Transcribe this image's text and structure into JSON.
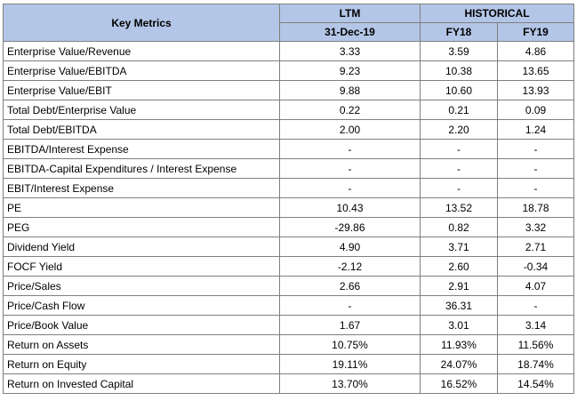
{
  "header": {
    "title": "Key Metrics",
    "ltm": "LTM",
    "historical": "HISTORICAL",
    "ltm_date": "31-Dec-19",
    "fy18": "FY18",
    "fy19": "FY19"
  },
  "rows": [
    {
      "label": "Enterprise Value/Revenue",
      "ltm": "3.33",
      "fy18": "3.59",
      "fy19": "4.86"
    },
    {
      "label": "Enterprise Value/EBITDA",
      "ltm": "9.23",
      "fy18": "10.38",
      "fy19": "13.65"
    },
    {
      "label": "Enterprise Value/EBIT",
      "ltm": "9.88",
      "fy18": "10.60",
      "fy19": "13.93"
    },
    {
      "label": "Total Debt/Enterprise Value",
      "ltm": "0.22",
      "fy18": "0.21",
      "fy19": "0.09"
    },
    {
      "label": "Total Debt/EBITDA",
      "ltm": "2.00",
      "fy18": "2.20",
      "fy19": "1.24"
    },
    {
      "label": "EBITDA/Interest Expense",
      "ltm": "-",
      "fy18": "-",
      "fy19": "-"
    },
    {
      "label": "EBITDA-Capital Expenditures / Interest Expense",
      "ltm": "-",
      "fy18": "-",
      "fy19": "-"
    },
    {
      "label": "EBIT/Interest Expense",
      "ltm": "-",
      "fy18": "-",
      "fy19": "-"
    },
    {
      "label": "PE",
      "ltm": "10.43",
      "fy18": "13.52",
      "fy19": "18.78"
    },
    {
      "label": "PEG",
      "ltm": "-29.86",
      "fy18": "0.82",
      "fy19": "3.32"
    },
    {
      "label": "Dividend Yield",
      "ltm": "4.90",
      "fy18": "3.71",
      "fy19": "2.71"
    },
    {
      "label": "FOCF Yield",
      "ltm": "-2.12",
      "fy18": "2.60",
      "fy19": "-0.34"
    },
    {
      "label": "Price/Sales",
      "ltm": "2.66",
      "fy18": "2.91",
      "fy19": "4.07"
    },
    {
      "label": "Price/Cash Flow",
      "ltm": "-",
      "fy18": "36.31",
      "fy19": "-"
    },
    {
      "label": "Price/Book Value",
      "ltm": "1.67",
      "fy18": "3.01",
      "fy19": "3.14"
    },
    {
      "label": "Return on Assets",
      "ltm": "10.75%",
      "fy18": "11.93%",
      "fy19": "11.56%"
    },
    {
      "label": "Return on Equity",
      "ltm": "19.11%",
      "fy18": "24.07%",
      "fy19": "18.74%"
    },
    {
      "label": "Return on Invested Capital",
      "ltm": "13.70%",
      "fy18": "16.52%",
      "fy19": "14.54%"
    }
  ]
}
